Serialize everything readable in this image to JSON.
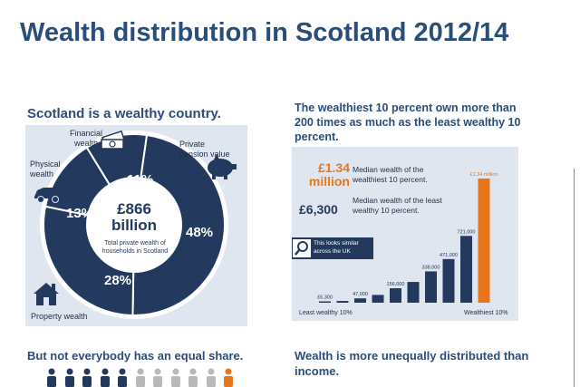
{
  "title": "Wealth distribution in Scotland 2012/14",
  "left": {
    "heading": "Scotland is a wealthy country.",
    "center_value_line1": "£866",
    "center_value_line2": "billion",
    "center_caption": "Total private wealth of households in Scotland",
    "segments": [
      {
        "label": "Financial wealth",
        "percent": "11%",
        "value": 11
      },
      {
        "label": "Private pension value",
        "percent": "48%",
        "value": 48
      },
      {
        "label": "Property wealth",
        "percent": "28%",
        "value": 28
      },
      {
        "label": "Physical wealth",
        "percent": "13%",
        "value": 13
      }
    ],
    "footer_heading": "But not everybody has an equal share."
  },
  "right": {
    "heading": "The wealthiest 10 percent own more than 200 times as much as the least wealthy 10 percent.",
    "stat1_value": "£1.34 million",
    "stat1_text": "Median wealth of the wealthiest 10 percent.",
    "stat2_value": "£6,300",
    "stat2_text": "Median wealth of the least wealthy 10 percent.",
    "note": "This looks similar across the UK",
    "x_left_label": "Least wealthy 10%",
    "x_right_label": "Wealthiest 10%",
    "footer_heading": "Wealth is more unequally distributed than income."
  },
  "colors": {
    "title": "#2b4d7a",
    "dark": "#23395d",
    "accent": "#e8751a",
    "panel": "#dfe6f0"
  },
  "chart_data": {
    "type": "bar",
    "categories": [
      "1",
      "2",
      "3",
      "4",
      "5",
      "6",
      "7",
      "8",
      "9",
      "10"
    ],
    "values": [
      6300,
      19000,
      47000,
      84000,
      156000,
      224000,
      338000,
      471000,
      721000,
      1340000
    ],
    "data_labels": [
      "£6,300",
      "",
      "47,000",
      "",
      "156,000",
      "",
      "338,000",
      "471,000",
      "721,000",
      "£1.34 million"
    ],
    "ylim": [
      0,
      1340000
    ]
  }
}
